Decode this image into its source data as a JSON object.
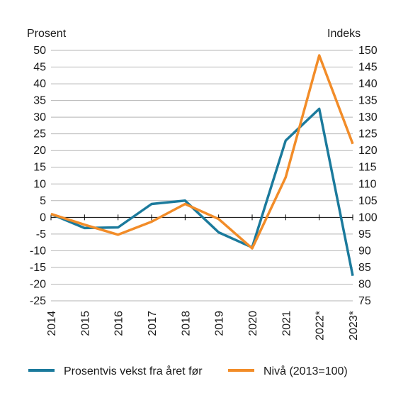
{
  "chart_data": {
    "type": "line",
    "categories": [
      "2014",
      "2015",
      "2016",
      "2017",
      "2018",
      "2019",
      "2020",
      "2021",
      "2022*",
      "2023*"
    ],
    "y_left": {
      "label": "Prosent",
      "min": -25,
      "max": 50,
      "step": 5
    },
    "y_right": {
      "label": "Indeks",
      "min": 75,
      "max": 150,
      "step": 5
    },
    "series": [
      {
        "name": "Prosentvis vekst fra året før",
        "axis": "left",
        "color": "#1b7a9c",
        "values": [
          1,
          -3.2,
          -3,
          4,
          5,
          -4.5,
          -9,
          23,
          32.5,
          -17.5
        ]
      },
      {
        "name": "Nivå (2013=100)",
        "axis": "right",
        "color": "#f28c28",
        "values": [
          101,
          97.8,
          94.8,
          98.7,
          104,
          99.5,
          90.7,
          112,
          148.5,
          122
        ]
      }
    ],
    "grid": "horizontal",
    "legend_position": "bottom"
  }
}
